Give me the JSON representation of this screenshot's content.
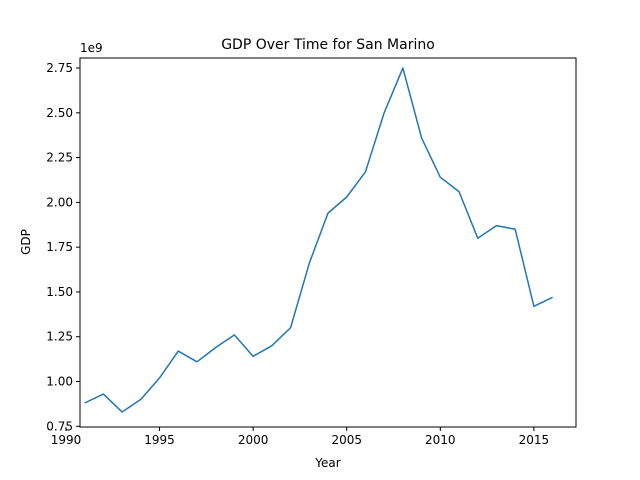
{
  "chart_data": {
    "type": "line",
    "title": "GDP Over Time for San Marino",
    "xlabel": "Year",
    "ylabel": "GDP",
    "y_offset_label": "1e9",
    "xlim": [
      1990.75,
      2017.25
    ],
    "ylim": [
      0.746,
      2.806
    ],
    "x_ticks": [
      1990,
      1995,
      2000,
      2005,
      2010,
      2015
    ],
    "y_ticks": [
      0.75,
      1.0,
      1.25,
      1.5,
      1.75,
      2.0,
      2.25,
      2.5,
      2.75
    ],
    "grid": false,
    "line_color": "#1f77b4",
    "series": [
      {
        "x": [
          1991,
          1992,
          1993,
          1994,
          1995,
          1996,
          1997,
          1998,
          1999,
          2000,
          2001,
          2002,
          2003,
          2004,
          2005,
          2006,
          2007,
          2008,
          2009,
          2010,
          2011,
          2012,
          2013,
          2014,
          2015,
          2016
        ],
        "values": [
          0.88,
          0.93,
          0.83,
          0.9,
          1.02,
          1.17,
          1.11,
          1.19,
          1.26,
          1.14,
          1.2,
          1.3,
          1.66,
          1.94,
          2.03,
          2.17,
          2.5,
          2.75,
          2.36,
          2.14,
          2.06,
          1.8,
          1.87,
          1.85,
          1.42,
          1.47
        ]
      }
    ]
  }
}
